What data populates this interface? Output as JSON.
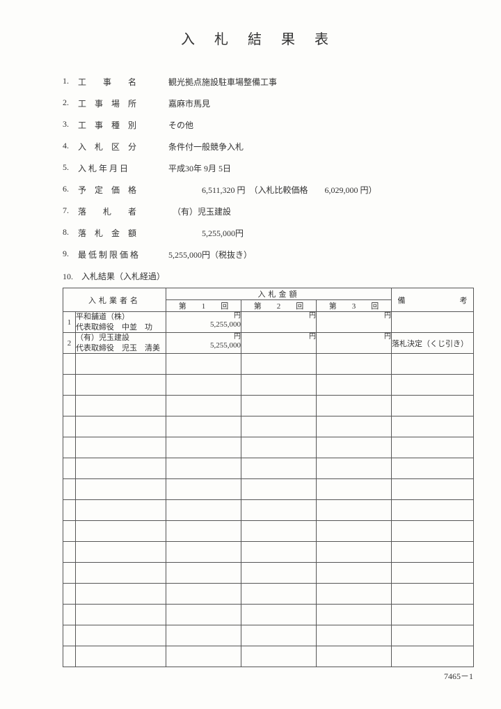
{
  "title": "入札結果表",
  "fields": [
    {
      "num": "1.",
      "label": "工　　事　　名",
      "value": "観光拠点施設駐車場整備工事"
    },
    {
      "num": "2.",
      "label": "工　事　場　所",
      "value": "嘉麻市馬見"
    },
    {
      "num": "3.",
      "label": "工　事　種　別",
      "value": "その他"
    },
    {
      "num": "4.",
      "label": "入　札　区　分",
      "value": "条件付一般競争入札"
    },
    {
      "num": "5.",
      "label": "入 札 年 月 日",
      "value": "平成30年 9月 5日"
    },
    {
      "num": "6.",
      "label": "予　定　価　格",
      "value": "　　　　6,511,320 円　（入札比較価格　　6,029,000 円）"
    },
    {
      "num": "7.",
      "label": "落　　札　　者",
      "value": "　（有）児玉建設"
    },
    {
      "num": "8.",
      "label": "落　札　金　額",
      "value": "　　　　5,255,000円"
    },
    {
      "num": "9.",
      "label": "最 低 制 限 価 格",
      "value": "5,255,000円（税抜き）"
    }
  ],
  "section10": "10.　入札結果（入札経過）",
  "table": {
    "header_name": "入札業者名",
    "header_amount_group": "入札金額",
    "header_remark_a": "備",
    "header_remark_b": "考",
    "round1": "第　　1　　回",
    "round2": "第　　2　　回",
    "round3": "第　　3　　回",
    "yen": "円",
    "rows": [
      {
        "num": "1",
        "name1": "平和舗道（株）",
        "name2": "代表取締役　中並　功",
        "amt1": "5,255,000",
        "amt2": "",
        "amt3": "",
        "remark": ""
      },
      {
        "num": "2",
        "name1": "（有）児玉建設",
        "name2": "代表取締役　児玉　清美",
        "amt1": "5,255,000",
        "amt2": "",
        "amt3": "",
        "remark": "落札決定（くじ引き）"
      }
    ],
    "empty_rows": 15
  },
  "footer": "7465－1"
}
